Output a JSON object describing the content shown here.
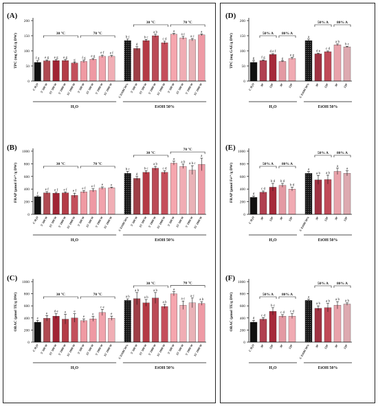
{
  "chart_data": [
    {
      "id": "A",
      "type": "bar",
      "panel_label": "(A)",
      "ylabel": "TPC (mg GAE/g DW)",
      "ylim": [
        0,
        200
      ],
      "yticks": [
        0,
        50,
        100,
        150,
        200
      ],
      "categories": [
        "C H₂O",
        "5' 500 W",
        "15' 500 W",
        "5' 1000 W",
        "15' 1000 W",
        "5' 500 W",
        "15' 500 W",
        "5' 1000 W",
        "15' 1000 W",
        "C EtOH 50%",
        "5' 500 W",
        "15' 500 W",
        "5' 1000 W",
        "15' 1000 W",
        "5' 500 W",
        "15' 500 W",
        "5' 1000 W",
        "15' 1000 W"
      ],
      "values": [
        62,
        67,
        68,
        68,
        60,
        65,
        72,
        82,
        82,
        134,
        108,
        134,
        150,
        127,
        155,
        143,
        137,
        153
      ],
      "errors": [
        6,
        3,
        3,
        3,
        3,
        4,
        3,
        4,
        3,
        5,
        6,
        4,
        5,
        5,
        3,
        5,
        4,
        3
      ],
      "letters": [
        "f g",
        "e g",
        "e g",
        "e g",
        "g",
        "f g",
        "e g",
        "e f",
        "e f",
        "b c",
        "d",
        "b c",
        "a b",
        "c d",
        "a",
        "a c",
        "a c",
        "a"
      ],
      "brackets": [
        {
          "label": "30 °C",
          "from": 1,
          "to": 4
        },
        {
          "label": "70 °C",
          "from": 5,
          "to": 8
        },
        {
          "label": "30 °C",
          "from": 10,
          "to": 13
        },
        {
          "label": "70 °C",
          "from": 14,
          "to": 17
        }
      ],
      "groups": [
        {
          "label": "H₂O",
          "from": 0,
          "to": 8
        },
        {
          "label": "EtOH 50%",
          "from": 9,
          "to": 17
        }
      ]
    },
    {
      "id": "B",
      "type": "bar",
      "panel_label": "(B)",
      "ylabel": "FRAP (µmol Fe²⁺/g DW)",
      "ylim": [
        0,
        1000
      ],
      "yticks": [
        0,
        200,
        400,
        600,
        800,
        1000
      ],
      "categories": [
        "C H₂O",
        "5' 500 W",
        "15' 500 W",
        "5' 1000 W",
        "15' 1000 W",
        "5' 500 W",
        "15' 500 W",
        "5' 1000 W",
        "15' 1000 W",
        "C EtOH 50%",
        "5' 500 W",
        "15' 500 W",
        "5' 1000 W",
        "15' 1000 W",
        "5' 500 W",
        "15' 500 W",
        "5' 1000 W",
        "15' 1000 W"
      ],
      "values": [
        280,
        340,
        335,
        340,
        300,
        355,
        380,
        415,
        420,
        650,
        570,
        665,
        730,
        665,
        810,
        760,
        700,
        790
      ],
      "errors": [
        15,
        20,
        15,
        15,
        35,
        20,
        25,
        20,
        10,
        30,
        30,
        25,
        30,
        25,
        30,
        35,
        70,
        100
      ],
      "letters": [
        "f",
        "e f",
        "e f",
        "e f",
        "e f",
        "e f",
        "e f",
        "e",
        "e",
        "b c",
        "d",
        "b c",
        "a b",
        "c d",
        "a",
        "a b",
        "a b c",
        "a"
      ],
      "brackets": [
        {
          "label": "30 °C",
          "from": 1,
          "to": 4
        },
        {
          "label": "70 °C",
          "from": 5,
          "to": 8
        },
        {
          "label": "30 °C",
          "from": 10,
          "to": 13
        },
        {
          "label": "70 °C",
          "from": 14,
          "to": 17
        }
      ],
      "groups": [
        {
          "label": "H₂O",
          "from": 0,
          "to": 8
        },
        {
          "label": "EtOH 50%",
          "from": 9,
          "to": 17
        }
      ]
    },
    {
      "id": "C",
      "type": "bar",
      "panel_label": "(C)",
      "ylabel": "ORAC (µmol TE/g DW)",
      "ylim": [
        0,
        1000
      ],
      "yticks": [
        0,
        200,
        400,
        600,
        800,
        1000
      ],
      "categories": [
        "C H₂O",
        "5' 500 W",
        "15' 500 W",
        "5' 1000 W",
        "15' 1000 W",
        "5' 500 W",
        "15' 500 W",
        "5' 1000 W",
        "15' 1000 W",
        "C EtOH 50%",
        "5' 500 W",
        "15' 500 W",
        "5' 1000 W",
        "15' 1000 W",
        "5' 500 W",
        "15' 500 W",
        "5' 1000 W",
        "15' 1000 W"
      ],
      "values": [
        330,
        395,
        430,
        380,
        400,
        355,
        385,
        490,
        395,
        690,
        720,
        650,
        730,
        590,
        800,
        610,
        650,
        640
      ],
      "errors": [
        30,
        45,
        40,
        80,
        70,
        30,
        40,
        50,
        35,
        25,
        100,
        55,
        90,
        35,
        35,
        70,
        80,
        30
      ],
      "letters": [
        "e",
        "e",
        "d e",
        "e",
        "e",
        "e",
        "e",
        "c e",
        "e",
        "a b",
        "a b",
        "a b",
        "a b",
        "a b",
        "a",
        "a c",
        "a c",
        "a b"
      ],
      "brackets": [
        {
          "label": "30 °C",
          "from": 1,
          "to": 4
        },
        {
          "label": "70 °C",
          "from": 5,
          "to": 8
        },
        {
          "label": "30 °C",
          "from": 10,
          "to": 13
        },
        {
          "label": "70 °C",
          "from": 14,
          "to": 17
        }
      ],
      "groups": [
        {
          "label": "H₂O",
          "from": 0,
          "to": 8
        },
        {
          "label": "EtOH 50%",
          "from": 9,
          "to": 17
        }
      ]
    },
    {
      "id": "D",
      "type": "bar",
      "panel_label": "(D)",
      "ylabel": "TPC (mg GAE/g DW)",
      "ylim": [
        0,
        200
      ],
      "yticks": [
        0,
        50,
        100,
        150,
        200
      ],
      "categories": [
        "C H₂O",
        "30'",
        "120'",
        "30'",
        "120'",
        "C EtOH 50%",
        "30'",
        "120'",
        "30'",
        "120'"
      ],
      "values": [
        62,
        68,
        88,
        65,
        75,
        134,
        90,
        97,
        120,
        113
      ],
      "errors": [
        6,
        2,
        3,
        2,
        3,
        5,
        2,
        3,
        3,
        2
      ],
      "letters": [
        "g",
        "f g",
        "d e f",
        "g",
        "e g",
        "a",
        "d e",
        "c d",
        "a b",
        "b c"
      ],
      "brackets": [
        {
          "label": "50% A",
          "from": 1,
          "to": 2
        },
        {
          "label": "80% A",
          "from": 3,
          "to": 4
        },
        {
          "label": "50% A",
          "from": 6,
          "to": 7
        },
        {
          "label": "80% A",
          "from": 8,
          "to": 9
        }
      ],
      "groups": [
        {
          "label": "H₂O",
          "from": 0,
          "to": 4
        },
        {
          "label": "EtOH 50%",
          "from": 5,
          "to": 9
        }
      ]
    },
    {
      "id": "E",
      "type": "bar",
      "panel_label": "(E)",
      "ylabel": "FRAP (µmol Fe²⁺/g DW)",
      "ylim": [
        0,
        1000
      ],
      "yticks": [
        0,
        200,
        400,
        600,
        800,
        1000
      ],
      "categories": [
        "C H₂O",
        "30'",
        "120'",
        "30'",
        "120'",
        "C EtOH 50%",
        "30'",
        "120'",
        "30'",
        "120'"
      ],
      "values": [
        270,
        350,
        430,
        460,
        400,
        650,
        545,
        550,
        680,
        650
      ],
      "errors": [
        20,
        20,
        60,
        30,
        30,
        30,
        70,
        70,
        50,
        40
      ],
      "letters": [
        "d",
        "c d",
        "b d",
        "b d",
        "b d",
        "a",
        "a b",
        "a b",
        "a",
        "a"
      ],
      "brackets": [
        {
          "label": "50% A",
          "from": 1,
          "to": 2
        },
        {
          "label": "80% A",
          "from": 3,
          "to": 4
        },
        {
          "label": "50% A",
          "from": 6,
          "to": 7
        },
        {
          "label": "80% A",
          "from": 8,
          "to": 9
        }
      ],
      "groups": [
        {
          "label": "H₂O",
          "from": 0,
          "to": 4
        },
        {
          "label": "EtOH 50%",
          "from": 5,
          "to": 9
        }
      ]
    },
    {
      "id": "F",
      "type": "bar",
      "panel_label": "(F)",
      "ylabel": "ORAC (µmol TE/g DW)",
      "ylim": [
        0,
        1000
      ],
      "yticks": [
        0,
        200,
        400,
        600,
        800,
        1000
      ],
      "categories": [
        "C H₂O",
        "30'",
        "120'",
        "30'",
        "120'",
        "C EtOH 50%",
        "30'",
        "120'",
        "30'",
        "120'"
      ],
      "values": [
        330,
        380,
        510,
        430,
        430,
        690,
        560,
        570,
        610,
        630
      ],
      "errors": [
        30,
        25,
        60,
        25,
        40,
        20,
        40,
        70,
        60,
        20
      ],
      "letters": [
        "d",
        "c d",
        "b c",
        "c d",
        "c d",
        "a",
        "a b",
        "a b",
        "a b",
        "a b"
      ],
      "brackets": [
        {
          "label": "50% A",
          "from": 1,
          "to": 2
        },
        {
          "label": "80% A",
          "from": 3,
          "to": 4
        },
        {
          "label": "50% A",
          "from": 6,
          "to": 7
        },
        {
          "label": "80% A",
          "from": 8,
          "to": 9
        }
      ],
      "groups": [
        {
          "label": "H₂O",
          "from": 0,
          "to": 4
        },
        {
          "label": "EtOH 50%",
          "from": 5,
          "to": 9
        }
      ]
    }
  ],
  "bar_colors": {
    "left": [
      "#111111",
      "#b04a52",
      "#a02434",
      "#b43c47",
      "#c24f5b",
      "#ef9aa3",
      "#ee99a3",
      "#f1a3ac",
      "#f0aeb5",
      "#141414",
      "#9f3f47",
      "#b43a45",
      "#bb4a56",
      "#c44e5b",
      "#f5a6ae",
      "#f0adb4",
      "#e9b2b7",
      "#ee9aa5"
    ],
    "right": [
      "#111111",
      "#b04050",
      "#a52a3a",
      "#e39aa3",
      "#f0aab2",
      "#151515",
      "#a03242",
      "#c04a58",
      "#e9a3ab",
      "#ddaab0"
    ]
  }
}
